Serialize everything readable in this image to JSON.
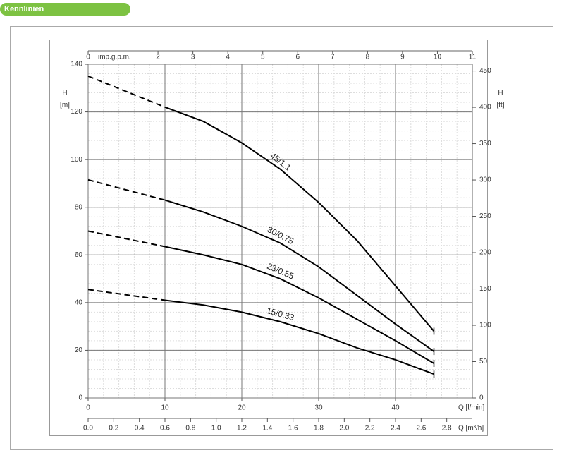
{
  "header": {
    "title": "Kennlinien"
  },
  "chart_data": {
    "type": "line",
    "x_label": "Q [l/min]",
    "xlim": [
      0,
      50
    ],
    "xticks": [
      0,
      10,
      20,
      30,
      40
    ],
    "x2_label": "Q [m³/h]",
    "x2lim": [
      0,
      3
    ],
    "x2ticks": [
      {
        "value": 0,
        "label": "0.0"
      },
      0.2,
      0.4,
      0.6,
      0.8,
      {
        "value": 1,
        "label": "1.0"
      },
      1.2,
      1.4,
      1.6,
      1.8,
      {
        "value": 2,
        "label": "2.0"
      },
      2.2,
      2.4,
      2.6,
      2.8
    ],
    "x3_label": "imp.g.p.m.",
    "x3lim": [
      0,
      11
    ],
    "x3ticks": [
      0,
      2,
      3,
      4,
      5,
      6,
      7,
      8,
      9,
      10,
      11
    ],
    "y_label": "H",
    "y_unit": "[m]",
    "ylim": [
      0,
      140
    ],
    "yticks": [
      0,
      20,
      40,
      60,
      80,
      100,
      120,
      140
    ],
    "y2_label": "H",
    "y2_unit": "[ft]",
    "y2lim": [
      0,
      459.3
    ],
    "y2ticks": [
      0,
      50,
      100,
      150,
      200,
      250,
      300,
      350,
      400,
      450
    ],
    "grid": true,
    "x": [
      0,
      10,
      15,
      20,
      25,
      30,
      35,
      40,
      45
    ],
    "series": [
      {
        "name": "45/1.1",
        "color": "#000000",
        "values": [
          135,
          122,
          116,
          107,
          96,
          82,
          66,
          47,
          28
        ]
      },
      {
        "name": "30/0.75",
        "color": "#000000",
        "values": [
          91.5,
          83,
          78,
          72,
          65,
          55,
          43,
          31,
          19.5
        ]
      },
      {
        "name": "23/0.55",
        "color": "#000000",
        "values": [
          70,
          63.5,
          60,
          56,
          50,
          42,
          33,
          24,
          14.5
        ]
      },
      {
        "name": "15/0.33",
        "color": "#000000",
        "values": [
          45.5,
          41,
          39,
          36,
          32,
          27,
          21,
          16,
          10
        ]
      }
    ]
  }
}
